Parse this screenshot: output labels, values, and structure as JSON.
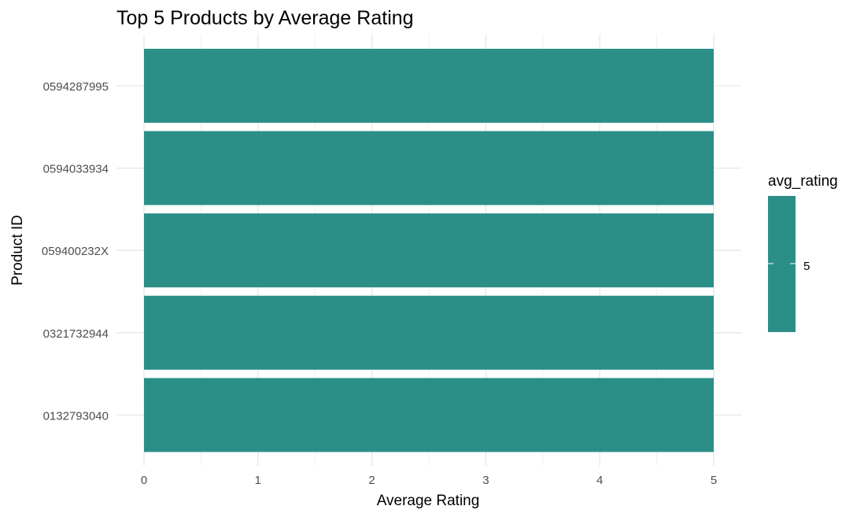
{
  "chart_data": {
    "type": "bar",
    "orientation": "horizontal",
    "title": "Top 5 Products by Average Rating",
    "xlabel": "Average Rating",
    "ylabel": "Product ID",
    "categories": [
      "0594287995",
      "0594033934",
      "059400232X",
      "0321732944",
      "0132793040"
    ],
    "values": [
      5,
      5,
      5,
      5,
      5
    ],
    "xlim": [
      0,
      5
    ],
    "xticks": [
      "0",
      "1",
      "2",
      "3",
      "4",
      "5"
    ],
    "grid": true,
    "bar_color": "#2B8F88",
    "legend": {
      "title": "avg_rating",
      "placement": "right",
      "labels": [
        "5"
      ]
    }
  }
}
